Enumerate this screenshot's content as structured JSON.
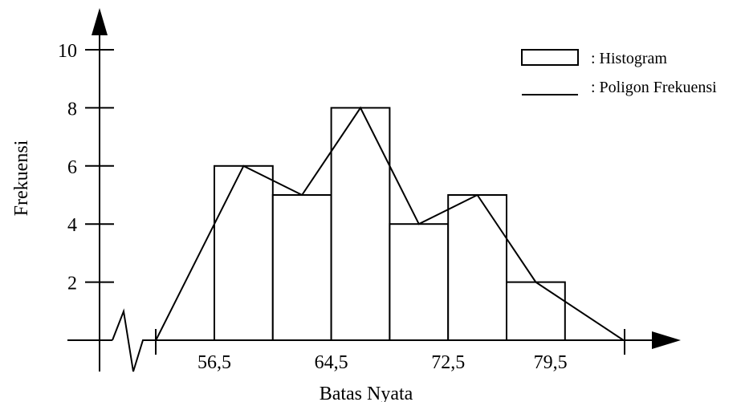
{
  "chart_data": {
    "type": "bar",
    "xlabel": "Batas Nyata",
    "ylabel": "Frekuensi",
    "ylim": [
      0,
      10
    ],
    "yticks": [
      2,
      4,
      6,
      8,
      10
    ],
    "xtick_labels": [
      "56,5",
      "64,5",
      "72,5",
      "79,5"
    ],
    "bins": [
      {
        "lower": 56.5,
        "upper": 60.5,
        "value": 6
      },
      {
        "lower": 60.5,
        "upper": 64.5,
        "value": 5
      },
      {
        "lower": 64.5,
        "upper": 68.5,
        "value": 8
      },
      {
        "lower": 68.5,
        "upper": 72.5,
        "value": 4
      },
      {
        "lower": 72.5,
        "upper": 76.5,
        "value": 5
      },
      {
        "lower": 76.5,
        "upper": 80.5,
        "value": 2
      }
    ],
    "series": [
      {
        "name": ": Histogram",
        "kind": "bars",
        "values": [
          6,
          5,
          8,
          4,
          5,
          2
        ]
      },
      {
        "name": ": Poligon Frekuensi",
        "kind": "line",
        "x": [
          52.5,
          58.5,
          62.5,
          66.5,
          70.5,
          74.5,
          78.5,
          84.5
        ],
        "values": [
          0,
          6,
          5,
          8,
          4,
          5,
          2,
          0
        ]
      }
    ],
    "legend_position": "top-right",
    "grid": false,
    "axis_break": true,
    "colors": {
      "stroke": "#000000",
      "fill": "#ffffff"
    }
  }
}
